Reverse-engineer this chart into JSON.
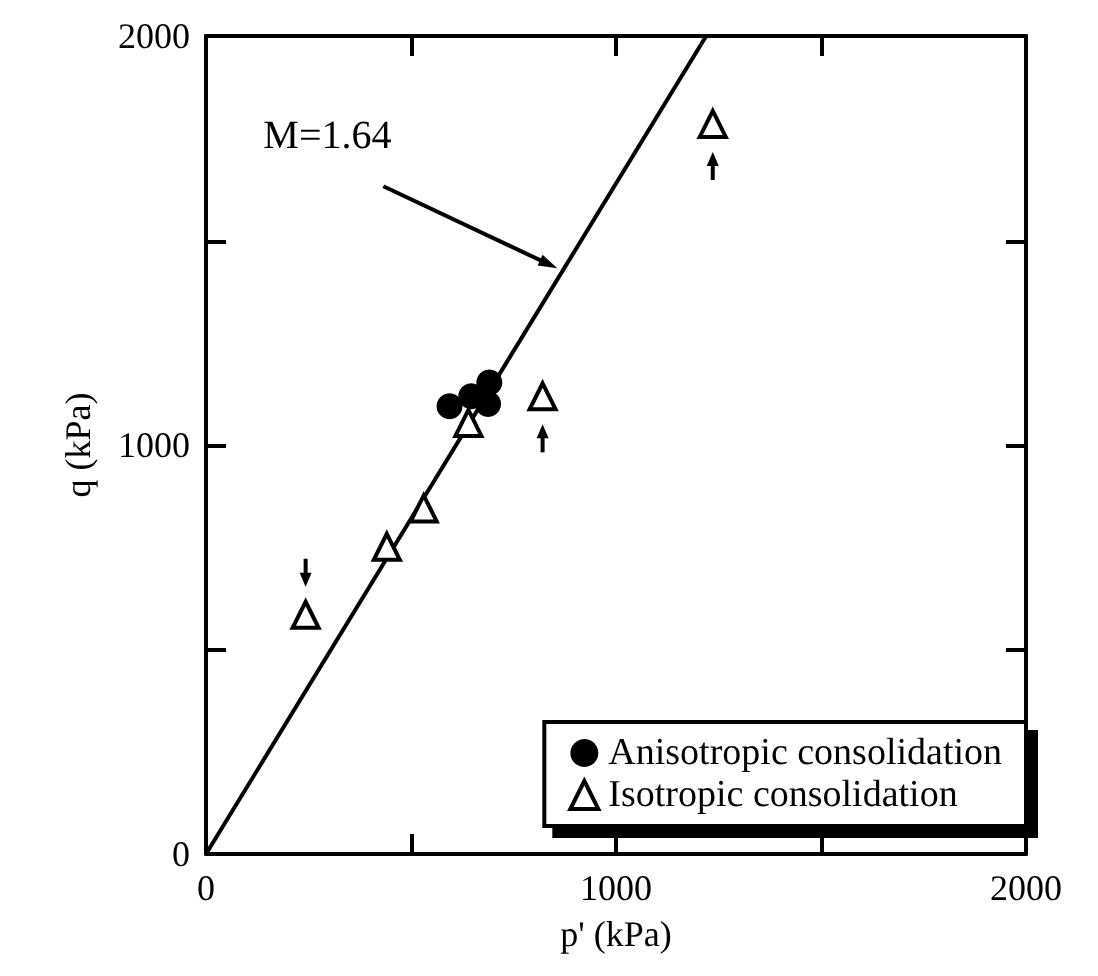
{
  "chart_data": {
    "type": "scatter",
    "xlabel": "p' (kPa)",
    "ylabel": "q (kPa)",
    "xlim": [
      0,
      2000
    ],
    "ylim": [
      0,
      2000
    ],
    "xticks": [
      0,
      {
        "value": 500,
        "label": null
      },
      1000,
      {
        "value": 1500,
        "label": null
      },
      2000
    ],
    "yticks": [
      0,
      {
        "value": 500,
        "label": null
      },
      1000,
      {
        "value": 1500,
        "label": null
      },
      2000
    ],
    "grid": false,
    "legend": "bottom right",
    "annotations": [
      {
        "text": "M=1.64",
        "x": 857,
        "y": 1432
      }
    ],
    "series": [
      {
        "name": "Anisotropic consolidation",
        "marker": "circle",
        "color": "#000000",
        "x": [
          594,
          647,
          691,
          688
        ],
        "values": [
          1095,
          1119,
          1153,
          1100
        ]
      },
      {
        "name": "Isotropic consolidation",
        "marker": "triangle",
        "color": "#000000",
        "x": [
          243,
          441,
          531,
          640,
          821,
          1236
        ],
        "values": [
          585,
          751,
          845,
          1054,
          1119,
          1785
        ]
      },
      {
        "type": "line",
        "color": "#000000",
        "line_style": "solid",
        "marker": "none",
        "x": [
          0,
          1220
        ],
        "values": [
          0,
          2000
        ]
      }
    ]
  }
}
